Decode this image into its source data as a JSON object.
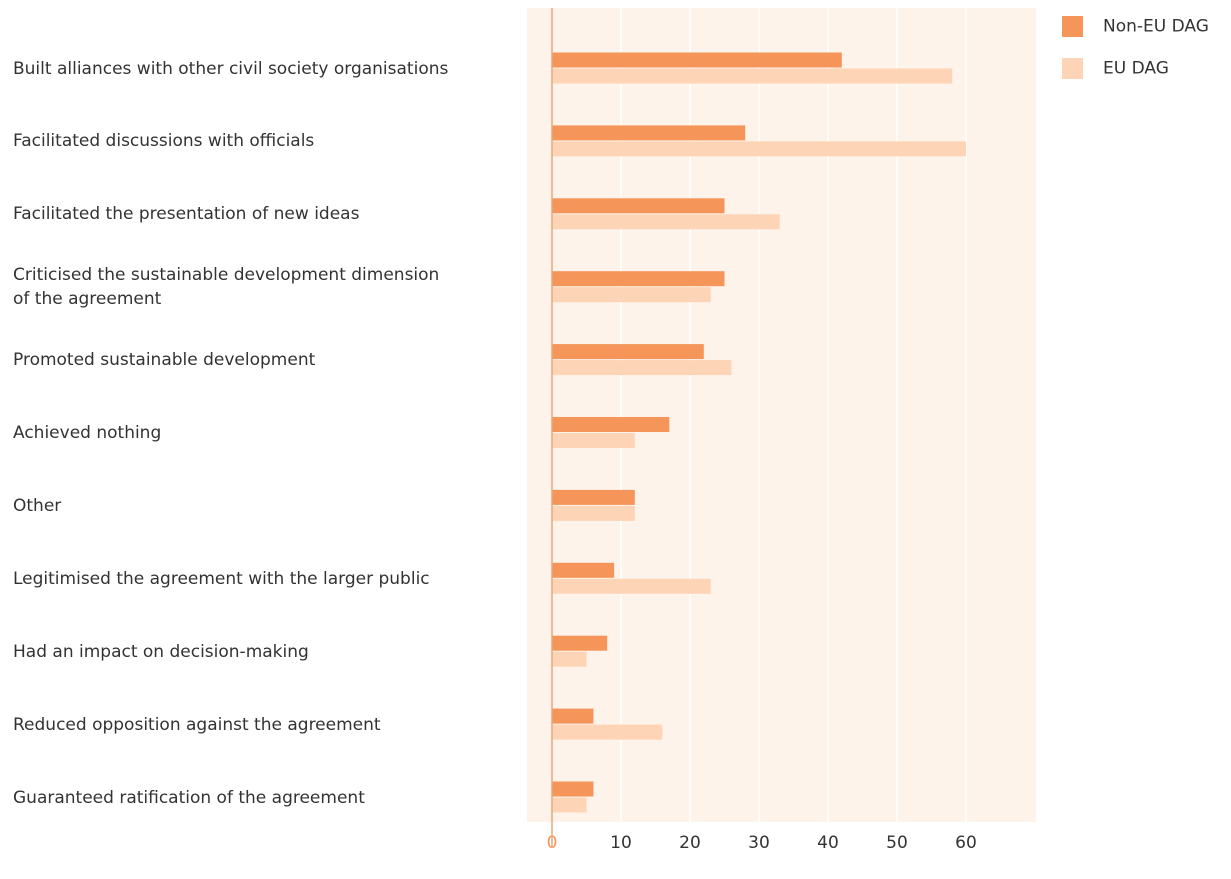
{
  "chart_data": {
    "type": "bar",
    "orientation": "horizontal",
    "categories": [
      "Built alliances with other civil society organisations",
      "Facilitated discussions with officials",
      "Facilitated the presentation of new ideas",
      "Criticised the sustainable development dimension\nof the agreement",
      "Promoted sustainable development",
      "Achieved nothing",
      "Other",
      "Legitimised the agreement with the larger public",
      "Had an impact on decision-making",
      "Reduced opposition against the agreement",
      "Guaranteed ratification of the agreement"
    ],
    "series": [
      {
        "name": "Non-EU DAG",
        "color": "#f5955a",
        "values": [
          42,
          28,
          25,
          25,
          22,
          17,
          12,
          9,
          8,
          6,
          6
        ]
      },
      {
        "name": "EU DAG",
        "color": "#fdd4b5",
        "values": [
          58,
          60,
          33,
          23,
          26,
          12,
          12,
          23,
          5,
          16,
          5
        ]
      }
    ],
    "xlim": [
      0,
      70
    ],
    "xticks": [
      0,
      10,
      20,
      30,
      40,
      50,
      60
    ],
    "grid": true,
    "legend": "top-right"
  }
}
